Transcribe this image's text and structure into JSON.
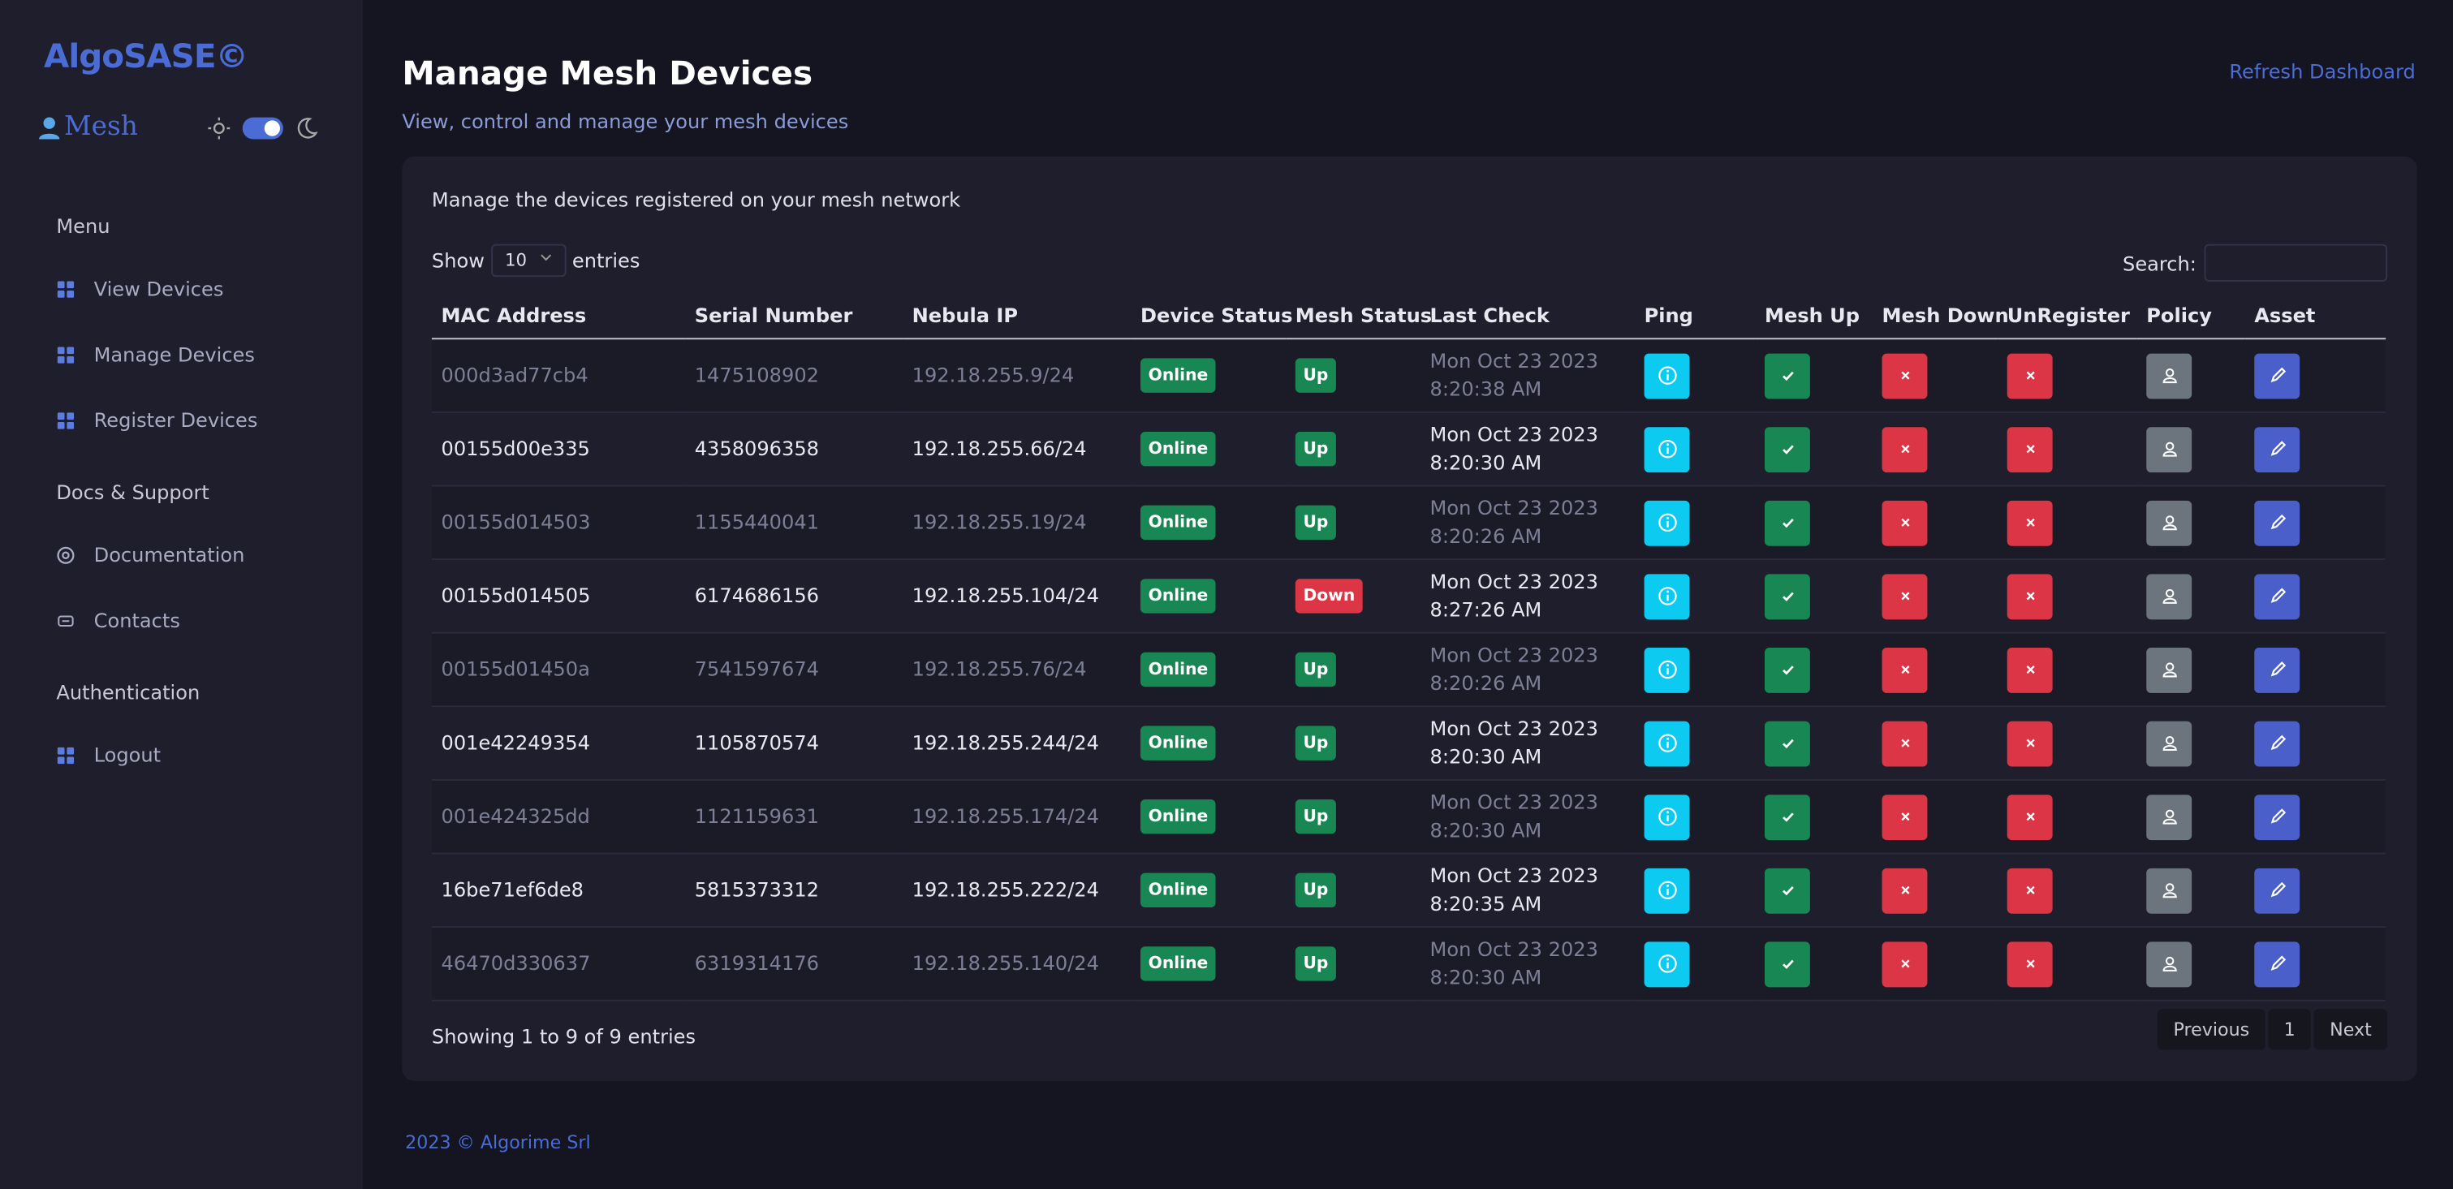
{
  "sidebar": {
    "brand": "AlgoSASE©",
    "product": "Mesh",
    "sections": [
      {
        "title": "Menu",
        "items": [
          "View Devices",
          "Manage Devices",
          "Register Devices"
        ]
      },
      {
        "title": "Docs & Support",
        "items": [
          "Documentation",
          "Contacts"
        ]
      },
      {
        "title": "Authentication",
        "items": [
          "Logout"
        ]
      }
    ]
  },
  "header": {
    "title": "Manage Mesh Devices",
    "subtitle": "View, control and manage your mesh devices",
    "action": "Refresh Dashboard"
  },
  "card": {
    "description": "Manage the devices registered on your mesh network",
    "length_before": "Show",
    "page_length": "10",
    "length_after": "entries",
    "search_label": "Search:",
    "columns": [
      "MAC Address",
      "Serial Number",
      "Nebula IP",
      "Device Status",
      "Mesh Status",
      "Last Check",
      "Ping",
      "Mesh Up",
      "Mesh Down",
      "UnRegister",
      "Policy",
      "Asset"
    ],
    "rows": [
      [
        "000d3ad77cb4",
        "1475108902",
        "192.18.255.9/24",
        "Online",
        "Up",
        "Mon Oct 23 2023 8:20:38 AM"
      ],
      [
        "00155d00e335",
        "4358096358",
        "192.18.255.66/24",
        "Online",
        "Up",
        "Mon Oct 23 2023 8:20:30 AM"
      ],
      [
        "00155d014503",
        "1155440041",
        "192.18.255.19/24",
        "Online",
        "Up",
        "Mon Oct 23 2023 8:20:26 AM"
      ],
      [
        "00155d014505",
        "6174686156",
        "192.18.255.104/24",
        "Online",
        "Down",
        "Mon Oct 23 2023 8:27:26 AM"
      ],
      [
        "00155d01450a",
        "7541597674",
        "192.18.255.76/24",
        "Online",
        "Up",
        "Mon Oct 23 2023 8:20:26 AM"
      ],
      [
        "001e42249354",
        "1105870574",
        "192.18.255.244/24",
        "Online",
        "Up",
        "Mon Oct 23 2023 8:20:30 AM"
      ],
      [
        "001e424325dd",
        "1121159631",
        "192.18.255.174/24",
        "Online",
        "Up",
        "Mon Oct 23 2023 8:20:30 AM"
      ],
      [
        "16be71ef6de8",
        "5815373312",
        "192.18.255.222/24",
        "Online",
        "Up",
        "Mon Oct 23 2023 8:20:35 AM"
      ],
      [
        "46470d330637",
        "6319314176",
        "192.18.255.140/24",
        "Online",
        "Up",
        "Mon Oct 23 2023 8:20:30 AM"
      ]
    ],
    "info": "Showing 1 to 9 of 9 entries",
    "pagination": [
      "Previous",
      "1",
      "Next"
    ]
  },
  "footer": "2023 © Algorime Srl"
}
